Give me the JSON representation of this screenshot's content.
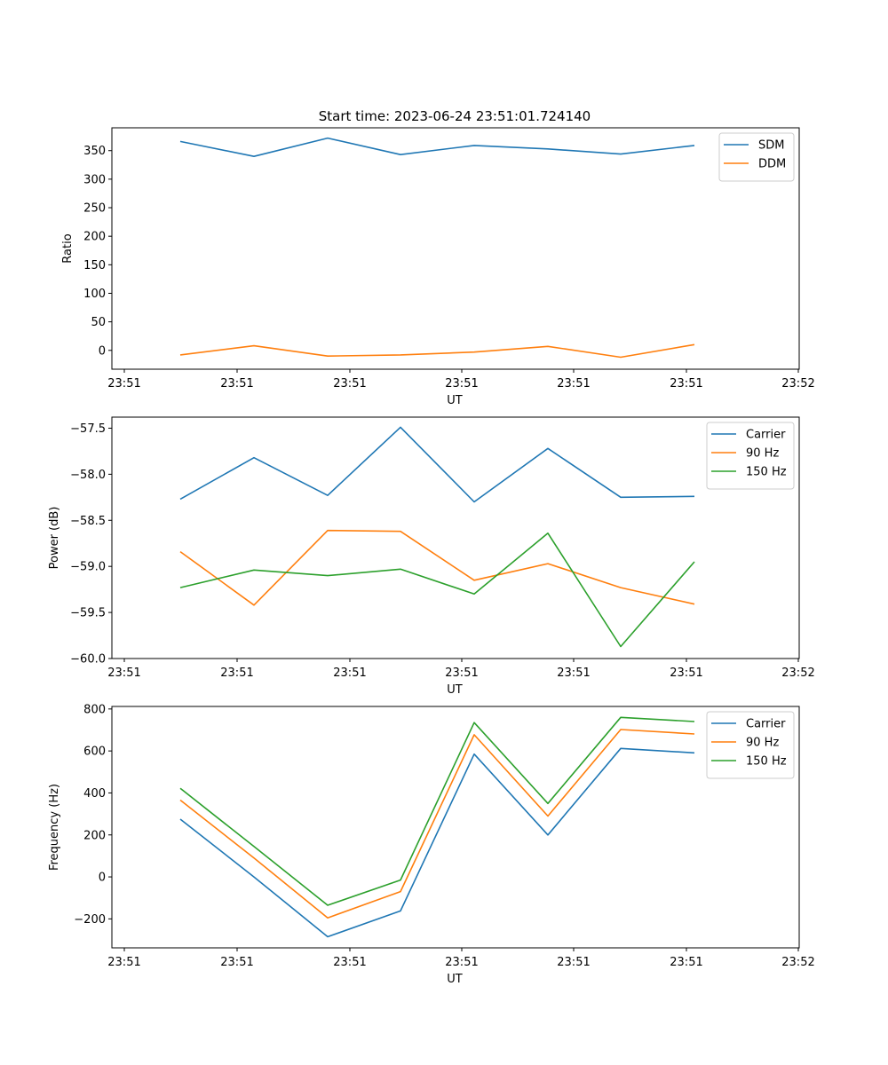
{
  "figure": {
    "title": "Start time: 2023-06-24 23:51:01.724140"
  },
  "colors": {
    "blue": "#1f77b4",
    "orange": "#ff7f0e",
    "green": "#2ca02c",
    "frame": "#000000",
    "background": "#ffffff",
    "legend_border": "#cccccc"
  },
  "chart_data": [
    {
      "type": "line",
      "xlabel": "UT",
      "ylabel": "Ratio",
      "xtick_labels": [
        "23:51",
        "23:51",
        "23:51",
        "23:51",
        "23:51",
        "23:51",
        "23:51"
      ],
      "xtick_last_label": "23:52",
      "ylim": [
        -33,
        390
      ],
      "yticks": [
        0,
        50,
        100,
        150,
        200,
        250,
        300,
        350
      ],
      "ytick_labels": [
        "0",
        "50",
        "100",
        "150",
        "200",
        "250",
        "300",
        "350"
      ],
      "legend_position": "upper right",
      "grid": false,
      "series": [
        {
          "name": "SDM",
          "color": "#1f77b4",
          "values": [
            366,
            340,
            372,
            343,
            359,
            353,
            344,
            359
          ]
        },
        {
          "name": "DDM",
          "color": "#ff7f0e",
          "values": [
            -8,
            8,
            -10,
            -8,
            -3,
            7,
            -12,
            10
          ]
        }
      ]
    },
    {
      "type": "line",
      "xlabel": "UT",
      "ylabel": "Power (dB)",
      "xtick_labels": [
        "23:51",
        "23:51",
        "23:51",
        "23:51",
        "23:51",
        "23:51",
        "23:51"
      ],
      "xtick_last_label": "23:52",
      "ylim": [
        -60.0,
        -57.38
      ],
      "yticks": [
        -60.0,
        -59.5,
        -59.0,
        -58.5,
        -58.0,
        -57.5
      ],
      "ytick_labels": [
        "−60.0",
        "−59.5",
        "−59.0",
        "−58.5",
        "−58.0",
        "−57.5"
      ],
      "legend_position": "upper right",
      "grid": false,
      "series": [
        {
          "name": "Carrier",
          "color": "#1f77b4",
          "values": [
            -58.27,
            -57.82,
            -58.23,
            -57.49,
            -58.3,
            -57.72,
            -58.25,
            -58.24
          ]
        },
        {
          "name": "90 Hz",
          "color": "#ff7f0e",
          "values": [
            -58.84,
            -59.42,
            -58.61,
            -58.62,
            -59.15,
            -58.97,
            -59.23,
            -59.41
          ]
        },
        {
          "name": "150 Hz",
          "color": "#2ca02c",
          "values": [
            -59.23,
            -59.04,
            -59.1,
            -59.03,
            -59.3,
            -58.64,
            -59.87,
            -58.95
          ]
        }
      ]
    },
    {
      "type": "line",
      "xlabel": "UT",
      "ylabel": "Frequency (Hz)",
      "xtick_labels": [
        "23:51",
        "23:51",
        "23:51",
        "23:51",
        "23:51",
        "23:51",
        "23:51"
      ],
      "xtick_last_label": "23:52",
      "ylim": [
        -338,
        812
      ],
      "yticks": [
        -200,
        0,
        200,
        400,
        600,
        800
      ],
      "ytick_labels": [
        "−200",
        "0",
        "200",
        "400",
        "600",
        "800"
      ],
      "legend_position": "upper right",
      "grid": false,
      "series": [
        {
          "name": "Carrier",
          "color": "#1f77b4",
          "values": [
            275,
            0,
            -285,
            -162,
            585,
            200,
            612,
            591
          ]
        },
        {
          "name": "90 Hz",
          "color": "#ff7f0e",
          "values": [
            366,
            90,
            -195,
            -70,
            677,
            290,
            702,
            681
          ]
        },
        {
          "name": "150 Hz",
          "color": "#2ca02c",
          "values": [
            422,
            145,
            -135,
            -15,
            735,
            350,
            760,
            740
          ]
        }
      ]
    }
  ]
}
